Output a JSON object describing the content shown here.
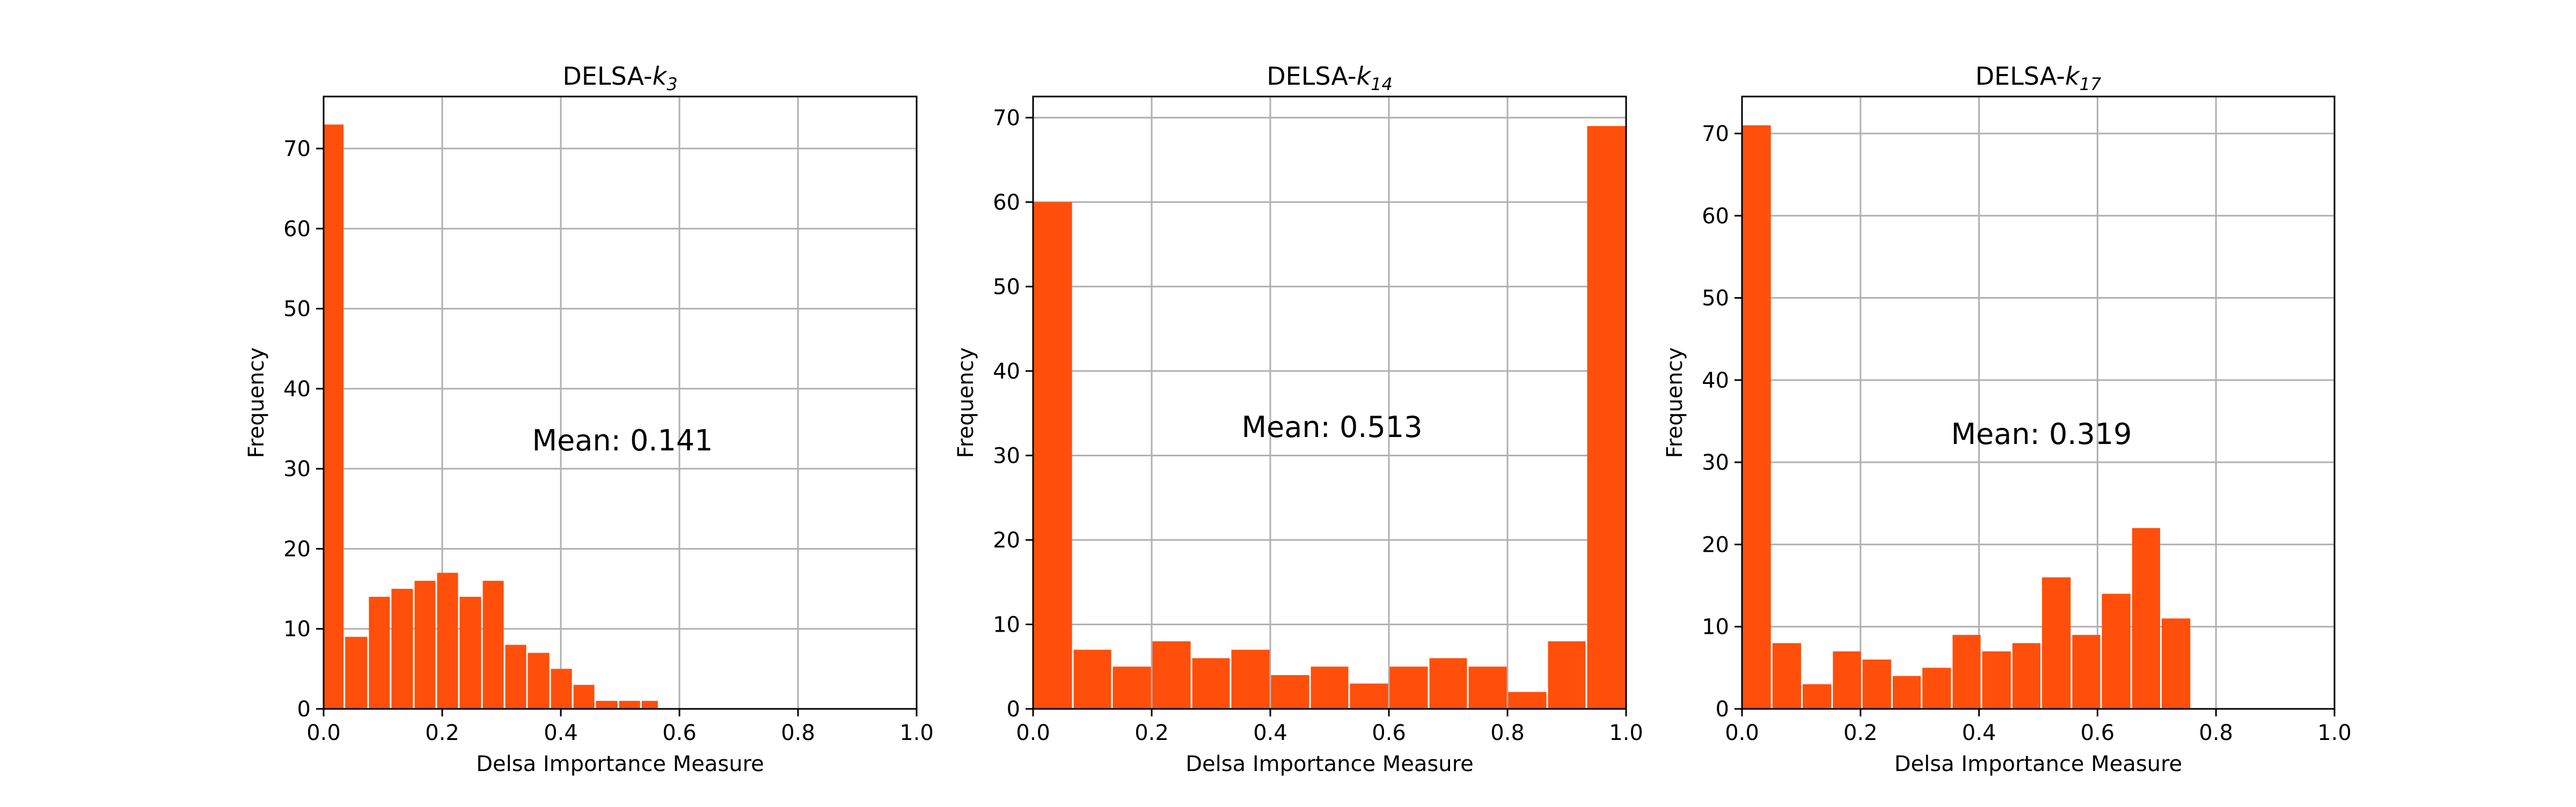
{
  "chart_data": [
    {
      "type": "bar",
      "title_prefix": "DELSA-",
      "title_var": "k",
      "title_sub": "3",
      "xlabel": "Delsa Importance Measure",
      "ylabel": "Frequency",
      "xlim": [
        0,
        1
      ],
      "ylim": [
        0,
        76.5
      ],
      "xticks": [
        0,
        0.2,
        0.4,
        0.6,
        0.8,
        1
      ],
      "xtick_labels": [
        "0.0",
        "0.2",
        "0.4",
        "0.6",
        "0.8",
        "1.0"
      ],
      "yticks": [
        0,
        10,
        20,
        30,
        40,
        50,
        60,
        70
      ],
      "ytick_labels": [
        "0",
        "10",
        "20",
        "30",
        "40",
        "50",
        "60",
        "70"
      ],
      "grid": true,
      "bar_color": "#ff4f0a",
      "annotation": "Mean: 0.141",
      "bins": [
        {
          "x0": 0.0,
          "x1": 0.035,
          "value": 73
        },
        {
          "x0": 0.035,
          "x1": 0.075,
          "value": 9
        },
        {
          "x0": 0.075,
          "x1": 0.113,
          "value": 14
        },
        {
          "x0": 0.113,
          "x1": 0.152,
          "value": 15
        },
        {
          "x0": 0.152,
          "x1": 0.19,
          "value": 16
        },
        {
          "x0": 0.19,
          "x1": 0.228,
          "value": 17
        },
        {
          "x0": 0.228,
          "x1": 0.267,
          "value": 14
        },
        {
          "x0": 0.267,
          "x1": 0.305,
          "value": 16
        },
        {
          "x0": 0.305,
          "x1": 0.343,
          "value": 8
        },
        {
          "x0": 0.343,
          "x1": 0.382,
          "value": 7
        },
        {
          "x0": 0.382,
          "x1": 0.42,
          "value": 5
        },
        {
          "x0": 0.42,
          "x1": 0.458,
          "value": 3
        },
        {
          "x0": 0.458,
          "x1": 0.497,
          "value": 1
        },
        {
          "x0": 0.497,
          "x1": 0.535,
          "value": 1
        },
        {
          "x0": 0.535,
          "x1": 0.565,
          "value": 1
        }
      ]
    },
    {
      "type": "bar",
      "title_prefix": "DELSA-",
      "title_var": "k",
      "title_sub": "14",
      "xlabel": "Delsa Importance Measure",
      "ylabel": "Frequency",
      "xlim": [
        0,
        1
      ],
      "ylim": [
        0,
        72.5
      ],
      "xticks": [
        0,
        0.2,
        0.4,
        0.6,
        0.8,
        1
      ],
      "xtick_labels": [
        "0.0",
        "0.2",
        "0.4",
        "0.6",
        "0.8",
        "1.0"
      ],
      "yticks": [
        0,
        10,
        20,
        30,
        40,
        50,
        60,
        70
      ],
      "ytick_labels": [
        "0",
        "10",
        "20",
        "30",
        "40",
        "50",
        "60",
        "70"
      ],
      "grid": true,
      "bar_color": "#ff4f0a",
      "annotation": "Mean: 0.513",
      "bins": [
        {
          "x0": 0.0,
          "x1": 0.067,
          "value": 60
        },
        {
          "x0": 0.067,
          "x1": 0.133,
          "value": 7
        },
        {
          "x0": 0.133,
          "x1": 0.2,
          "value": 5
        },
        {
          "x0": 0.2,
          "x1": 0.267,
          "value": 8
        },
        {
          "x0": 0.267,
          "x1": 0.333,
          "value": 6
        },
        {
          "x0": 0.333,
          "x1": 0.4,
          "value": 7
        },
        {
          "x0": 0.4,
          "x1": 0.467,
          "value": 4
        },
        {
          "x0": 0.467,
          "x1": 0.533,
          "value": 5
        },
        {
          "x0": 0.533,
          "x1": 0.6,
          "value": 3
        },
        {
          "x0": 0.6,
          "x1": 0.667,
          "value": 5
        },
        {
          "x0": 0.667,
          "x1": 0.733,
          "value": 6
        },
        {
          "x0": 0.733,
          "x1": 0.8,
          "value": 5
        },
        {
          "x0": 0.8,
          "x1": 0.867,
          "value": 2
        },
        {
          "x0": 0.867,
          "x1": 0.933,
          "value": 8
        },
        {
          "x0": 0.933,
          "x1": 1.0,
          "value": 69
        }
      ]
    },
    {
      "type": "bar",
      "title_prefix": "DELSA-",
      "title_var": "k",
      "title_sub": "17",
      "xlabel": "Delsa Importance Measure",
      "ylabel": "Frequency",
      "xlim": [
        0,
        1
      ],
      "ylim": [
        0,
        74.5
      ],
      "xticks": [
        0,
        0.2,
        0.4,
        0.6,
        0.8,
        1
      ],
      "xtick_labels": [
        "0.0",
        "0.2",
        "0.4",
        "0.6",
        "0.8",
        "1.0"
      ],
      "yticks": [
        0,
        10,
        20,
        30,
        40,
        50,
        60,
        70
      ],
      "ytick_labels": [
        "0",
        "10",
        "20",
        "30",
        "40",
        "50",
        "60",
        "70"
      ],
      "grid": true,
      "bar_color": "#ff4f0a",
      "annotation": "Mean: 0.319",
      "bins": [
        {
          "x0": 0.0,
          "x1": 0.05,
          "value": 71
        },
        {
          "x0": 0.05,
          "x1": 0.101,
          "value": 8
        },
        {
          "x0": 0.101,
          "x1": 0.152,
          "value": 3
        },
        {
          "x0": 0.152,
          "x1": 0.202,
          "value": 7
        },
        {
          "x0": 0.202,
          "x1": 0.253,
          "value": 6
        },
        {
          "x0": 0.253,
          "x1": 0.303,
          "value": 4
        },
        {
          "x0": 0.303,
          "x1": 0.354,
          "value": 5
        },
        {
          "x0": 0.354,
          "x1": 0.404,
          "value": 9
        },
        {
          "x0": 0.404,
          "x1": 0.455,
          "value": 7
        },
        {
          "x0": 0.455,
          "x1": 0.505,
          "value": 8
        },
        {
          "x0": 0.505,
          "x1": 0.556,
          "value": 16
        },
        {
          "x0": 0.556,
          "x1": 0.606,
          "value": 9
        },
        {
          "x0": 0.606,
          "x1": 0.657,
          "value": 14
        },
        {
          "x0": 0.657,
          "x1": 0.707,
          "value": 22
        },
        {
          "x0": 0.707,
          "x1": 0.758,
          "value": 11
        }
      ]
    }
  ]
}
